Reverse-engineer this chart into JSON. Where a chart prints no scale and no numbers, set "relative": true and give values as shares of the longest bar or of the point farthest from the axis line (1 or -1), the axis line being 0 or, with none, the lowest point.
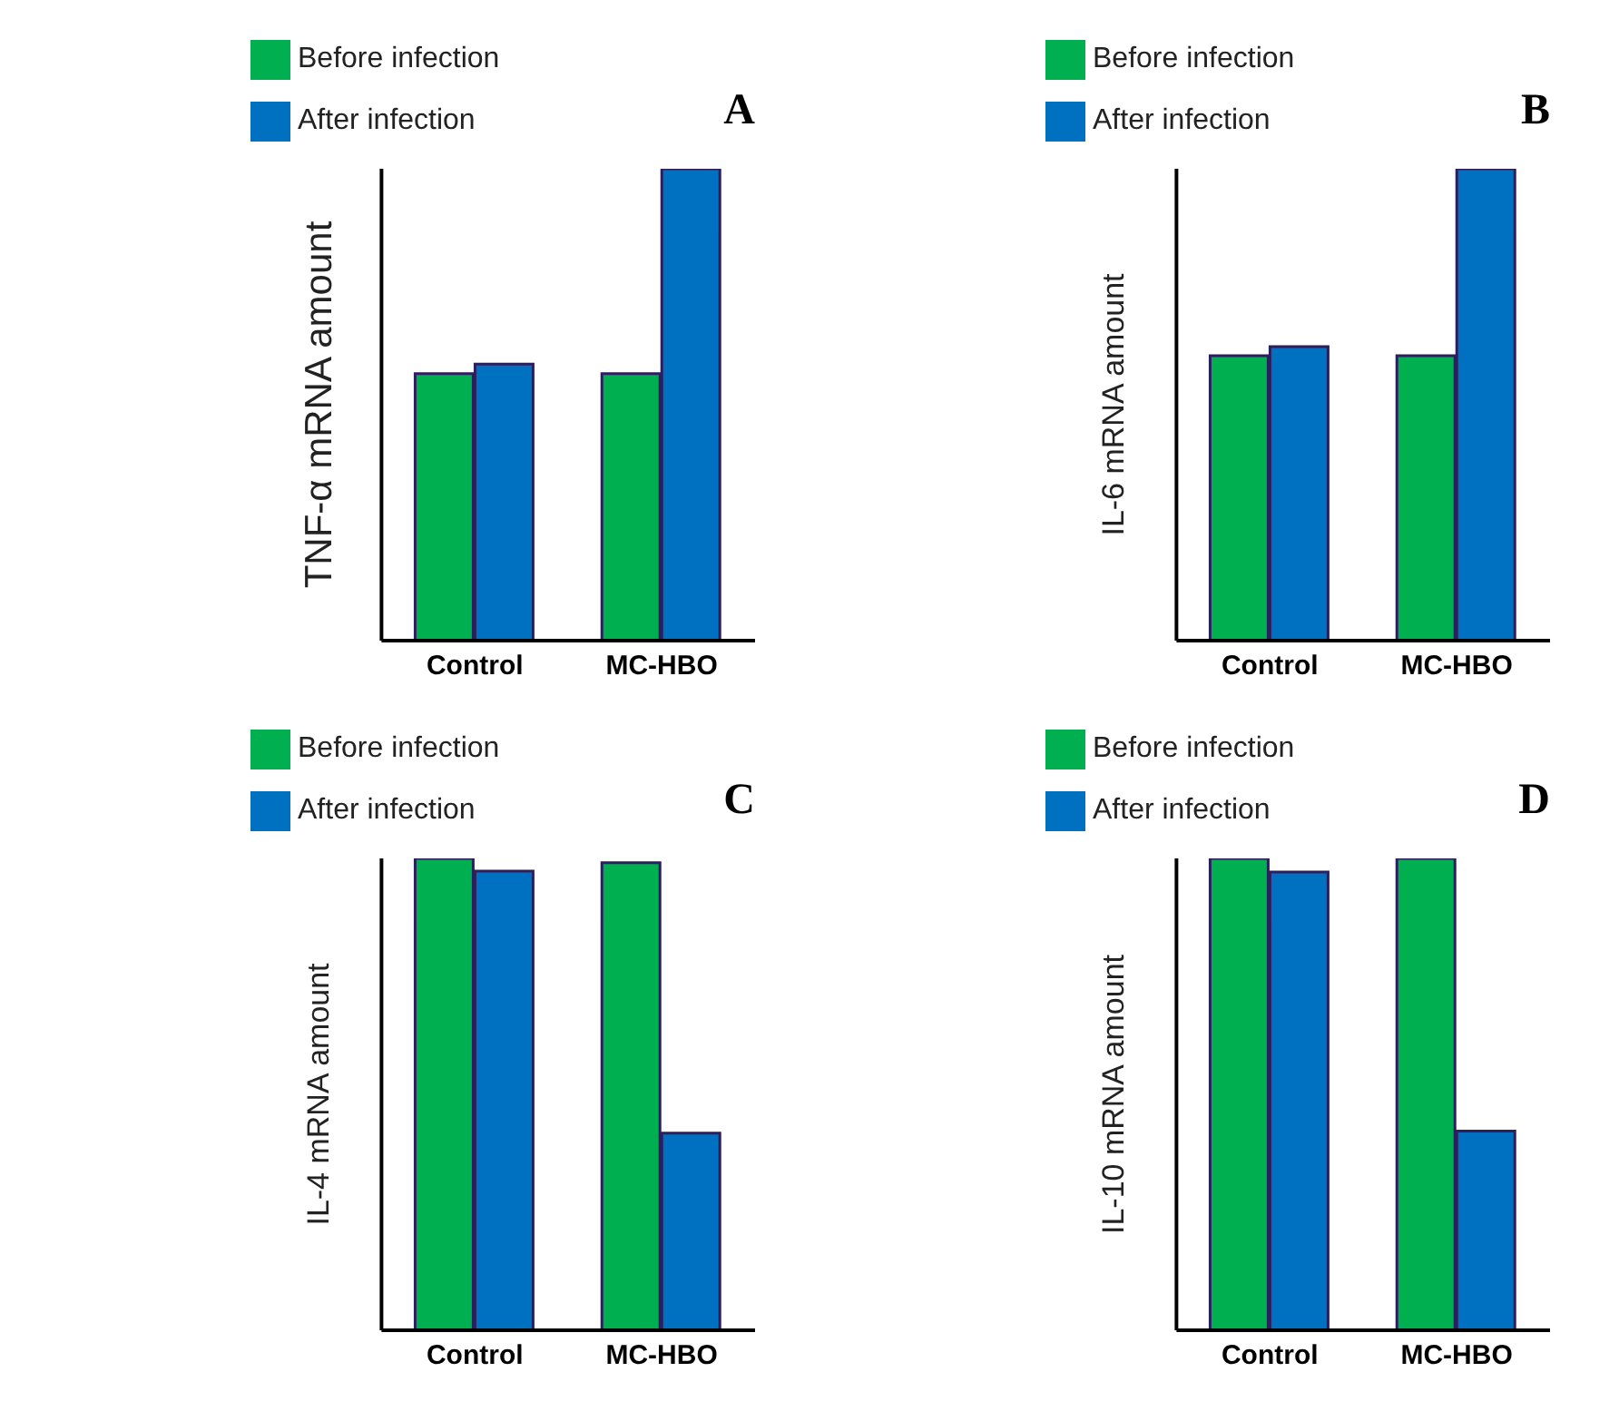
{
  "chart_data": [
    {
      "type": "bar",
      "relative": true,
      "ylabel": "TNF-α mRNA amount",
      "categories": [
        "Control",
        "MC-HBO"
      ],
      "legend": "top",
      "annotations": [
        "A"
      ],
      "series": [
        {
          "name": "Before infection",
          "color": "#00b050",
          "values": [
            0.566,
            0.566
          ]
        },
        {
          "name": "After infection",
          "color": "#0070c0",
          "values": [
            0.586,
            1
          ]
        }
      ]
    },
    {
      "type": "bar",
      "relative": true,
      "ylabel": "IL-6 mRNA amount",
      "categories": [
        "Control",
        "MC-HBO"
      ],
      "legend": "top",
      "annotations": [
        "B"
      ],
      "series": [
        {
          "name": "Before infection",
          "color": "#00b050",
          "values": [
            0.604,
            0.604
          ]
        },
        {
          "name": "After infection",
          "color": "#0070c0",
          "values": [
            0.623,
            1
          ]
        }
      ]
    },
    {
      "type": "bar",
      "relative": true,
      "ylabel": "IL-4 mRNA amount",
      "categories": [
        "Control",
        "MC-HBO"
      ],
      "legend": "top",
      "annotations": [
        "C"
      ],
      "series": [
        {
          "name": "Before infection",
          "color": "#00b050",
          "values": [
            1,
            0.991
          ]
        },
        {
          "name": "After infection",
          "color": "#0070c0",
          "values": [
            0.973,
            0.418
          ]
        }
      ]
    },
    {
      "type": "bar",
      "relative": true,
      "ylabel": "IL-10 mRNA amount",
      "categories": [
        "Control",
        "MC-HBO"
      ],
      "legend": "top",
      "annotations": [
        "D"
      ],
      "series": [
        {
          "name": "Before infection",
          "color": "#00b050",
          "values": [
            1,
            1
          ]
        },
        {
          "name": "After infection",
          "color": "#0070c0",
          "values": [
            0.971,
            0.422
          ]
        }
      ]
    }
  ]
}
